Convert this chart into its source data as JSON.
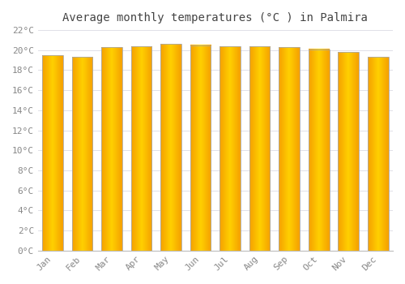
{
  "title": "Average monthly temperatures (Â°C ) in Palmira",
  "title_plain": "Average monthly temperatures (°C ) in Palmira",
  "months": [
    "Jan",
    "Feb",
    "Mar",
    "Apr",
    "May",
    "Jun",
    "Jul",
    "Aug",
    "Sep",
    "Oct",
    "Nov",
    "Dec"
  ],
  "values": [
    19.5,
    19.3,
    20.3,
    20.4,
    20.6,
    20.5,
    20.4,
    20.4,
    20.3,
    20.1,
    19.8,
    19.3
  ],
  "bar_color_center": "#FFD000",
  "bar_color_edge": "#F5A000",
  "bar_border_color": "#AAAAAA",
  "ylim": [
    0,
    22
  ],
  "yticks": [
    0,
    2,
    4,
    6,
    8,
    10,
    12,
    14,
    16,
    18,
    20,
    22
  ],
  "ytick_labels": [
    "0°C",
    "2°C",
    "4°C",
    "6°C",
    "8°C",
    "10°C",
    "12°C",
    "14°C",
    "16°C",
    "18°C",
    "20°C",
    "22°C"
  ],
  "background_color": "#ffffff",
  "grid_color": "#e0e0e8",
  "title_fontsize": 10,
  "tick_fontsize": 8,
  "font_color": "#888888",
  "bar_width": 0.7
}
